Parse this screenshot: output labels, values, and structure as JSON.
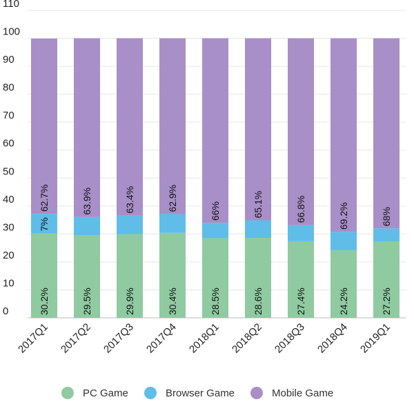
{
  "chart_data": {
    "type": "bar",
    "stacked": true,
    "categories": [
      "2017Q1",
      "2017Q2",
      "2017Q3",
      "2017Q4",
      "2018Q1",
      "2018Q2",
      "2018Q3",
      "2018Q4",
      "2019Q1"
    ],
    "series": [
      {
        "name": "PC Game",
        "color": "#8fcaa1",
        "values": [
          30.2,
          29.5,
          29.9,
          30.4,
          28.5,
          28.6,
          27.4,
          24.2,
          27.2
        ],
        "labels": [
          "30.2%",
          "29.5%",
          "29.9%",
          "30.4%",
          "28.5%",
          "28.6%",
          "27.4%",
          "24.2%",
          "27.2%"
        ]
      },
      {
        "name": "Browser Game",
        "color": "#5fbde8",
        "values": [
          7,
          6.6,
          6.7,
          6.7,
          5.5,
          6.3,
          5.8,
          6.6,
          4.8
        ],
        "labels": [
          "7%",
          "",
          "",
          "",
          "",
          "",
          "",
          "",
          ""
        ]
      },
      {
        "name": "Mobile Game",
        "color": "#a88fc8",
        "values": [
          62.7,
          63.9,
          63.4,
          62.9,
          66,
          65.1,
          66.8,
          69.2,
          68
        ],
        "labels": [
          "62.7%",
          "63.9%",
          "63.4%",
          "62.9%",
          "66%",
          "65.1%",
          "66.8%",
          "69.2%",
          "68%"
        ]
      }
    ],
    "y_ticks": [
      "0",
      "10",
      "20",
      "30",
      "40",
      "50",
      "60",
      "70",
      "80",
      "90",
      "100",
      "110"
    ],
    "ylim": [
      0,
      110
    ],
    "grid": true,
    "legend_position": "bottom"
  }
}
